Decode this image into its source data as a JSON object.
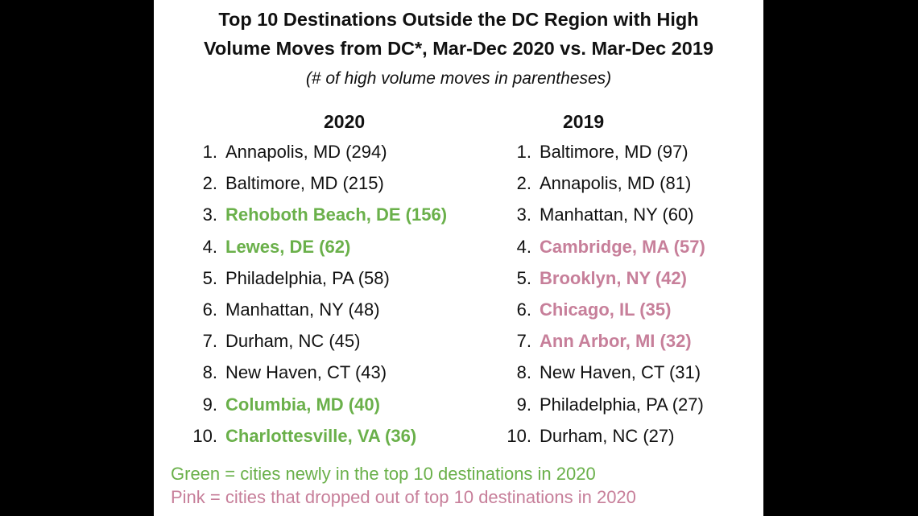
{
  "title_line1": "Top 10 Destinations Outside the DC Region with High",
  "title_line2": "Volume Moves from DC*, Mar-Dec 2020 vs. Mar-Dec 2019",
  "subtitle": "(# of high volume moves in parentheses)",
  "columns": [
    {
      "year": "2020",
      "items": [
        {
          "rank": "1.",
          "text": "Annapolis, MD (294)",
          "status": "normal"
        },
        {
          "rank": "2.",
          "text": "Baltimore, MD (215)",
          "status": "normal"
        },
        {
          "rank": "3.",
          "text": "Rehoboth Beach, DE (156)",
          "status": "new"
        },
        {
          "rank": "4.",
          "text": "Lewes, DE (62)",
          "status": "new"
        },
        {
          "rank": "5.",
          "text": "Philadelphia, PA (58)",
          "status": "normal"
        },
        {
          "rank": "6.",
          "text": "Manhattan, NY (48)",
          "status": "normal"
        },
        {
          "rank": "7.",
          "text": "Durham, NC (45)",
          "status": "normal"
        },
        {
          "rank": "8.",
          "text": "New Haven, CT (43)",
          "status": "normal"
        },
        {
          "rank": "9.",
          "text": "Columbia, MD (40)",
          "status": "new"
        },
        {
          "rank": "10.",
          "text": "Charlottesville, VA (36)",
          "status": "new"
        }
      ]
    },
    {
      "year": "2019",
      "items": [
        {
          "rank": "1.",
          "text": "Baltimore, MD (97)",
          "status": "normal"
        },
        {
          "rank": "2.",
          "text": "Annapolis, MD (81)",
          "status": "normal"
        },
        {
          "rank": "3.",
          "text": "Manhattan, NY (60)",
          "status": "normal"
        },
        {
          "rank": "4.",
          "text": "Cambridge, MA (57)",
          "status": "dropped"
        },
        {
          "rank": "5.",
          "text": "Brooklyn, NY (42)",
          "status": "dropped"
        },
        {
          "rank": "6.",
          "text": "Chicago, IL (35)",
          "status": "dropped"
        },
        {
          "rank": "7.",
          "text": "Ann Arbor, MI (32)",
          "status": "dropped"
        },
        {
          "rank": "8.",
          "text": "New Haven, CT (31)",
          "status": "normal"
        },
        {
          "rank": "9.",
          "text": "Philadelphia, PA (27)",
          "status": "normal"
        },
        {
          "rank": "10.",
          "text": "Durham, NC (27)",
          "status": "normal"
        }
      ]
    }
  ],
  "legend": {
    "green": "Green = cities newly in the top 10 destinations in 2020",
    "pink": "Pink = cities that dropped out of top 10 destinations in 2020"
  },
  "colors": {
    "green": "#6ab04a",
    "pink": "#c77f9a",
    "text": "#111111",
    "background": "#ffffff",
    "letterbox": "#000000"
  }
}
